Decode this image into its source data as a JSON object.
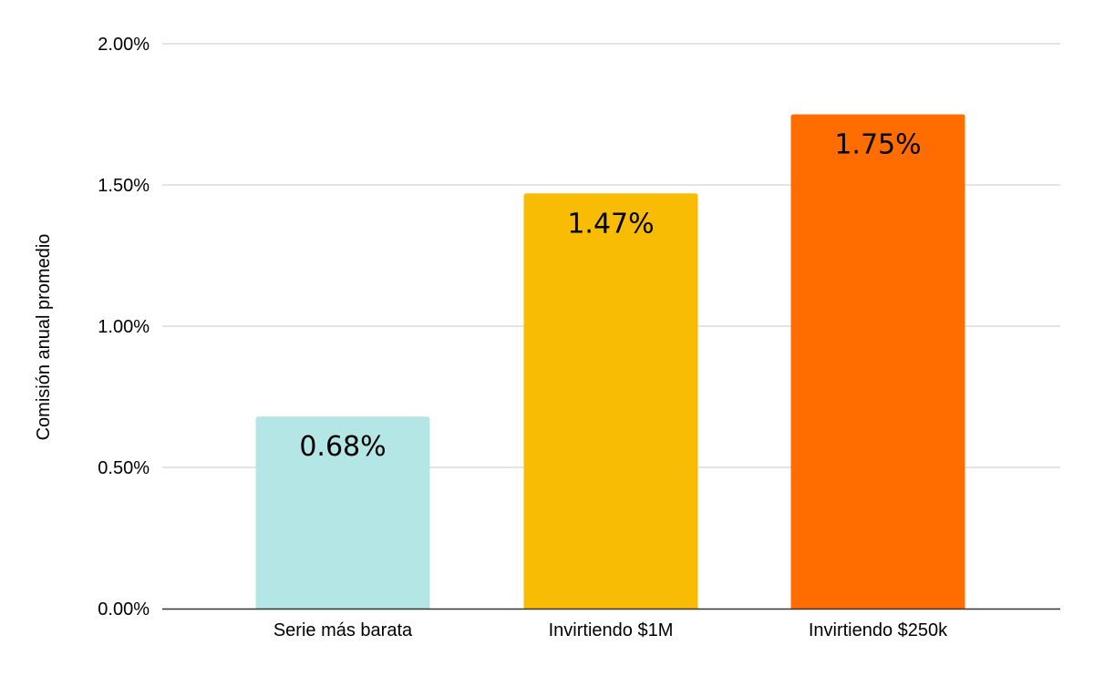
{
  "chart_data": {
    "type": "bar",
    "title": "",
    "xlabel": "",
    "ylabel": "Comisión anual promedio",
    "categories": [
      "Serie más barata",
      "Invirtiendo $1M",
      "Invirtiendo $250k"
    ],
    "values": [
      0.68,
      1.47,
      1.75
    ],
    "data_labels": [
      "0.68%",
      "1.47%",
      "1.75%"
    ],
    "bar_colors": [
      "#b3e6e4",
      "#f9bc05",
      "#ff6d01"
    ],
    "ylim": [
      0,
      2
    ],
    "yticks": [
      0,
      0.5,
      1,
      1.5,
      2
    ],
    "ytick_labels": [
      "0.00%",
      "0.50%",
      "1.00%",
      "1.50%",
      "2.00%"
    ],
    "grid": true,
    "legend": "none",
    "gridline_color": "#c8c8c8",
    "axis_color": "#333333"
  }
}
